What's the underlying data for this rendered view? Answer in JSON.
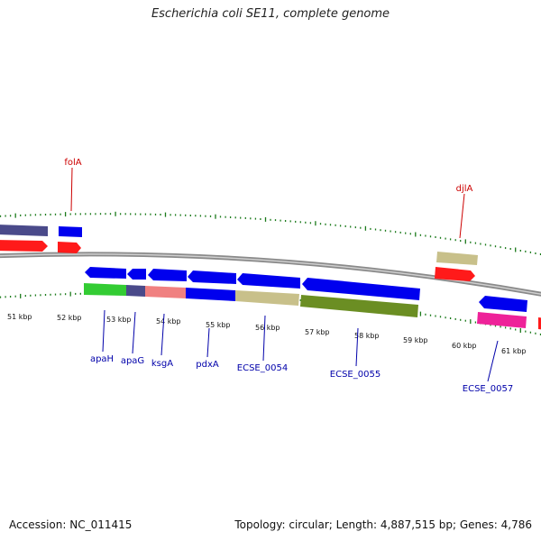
{
  "header": {
    "title": "Escherichia coli SE11, complete genome"
  },
  "footer": {
    "accession": "Accession: NC_011415",
    "summary": "Topology: circular; Length: 4,887,515 bp; Genes: 4,786"
  },
  "colors": {
    "backbone": "#8a8a8a",
    "tick": "#1a7a1a",
    "scale_label": "#111111",
    "label_red": "#cc0000",
    "label_blue": "#0000aa"
  },
  "scale_labels": [
    "51 kbp",
    "52 kbp",
    "53 kbp",
    "54 kbp",
    "55 kbp",
    "56 kbp",
    "57 kbp",
    "58 kbp",
    "59 kbp",
    "60 kbp",
    "61 kbp"
  ],
  "gene_labels": [
    {
      "text": "folA",
      "color": "red"
    },
    {
      "text": "djlA",
      "color": "red"
    },
    {
      "text": "apaH",
      "color": "blue"
    },
    {
      "text": "apaG",
      "color": "blue"
    },
    {
      "text": "ksgA",
      "color": "blue"
    },
    {
      "text": "pdxA",
      "color": "blue"
    },
    {
      "text": "ECSE_0054",
      "color": "blue"
    },
    {
      "text": "ECSE_0055",
      "color": "blue"
    },
    {
      "text": "ECSE_0057",
      "color": "blue"
    }
  ],
  "feature_colors": {
    "cds": "#0000ee",
    "gene": "#ff1a1a",
    "navy": "#4a4a8a",
    "green": "#33cc33",
    "salmon": "#f08080",
    "khaki": "#c8c08a",
    "olive": "#6b8e23",
    "magenta": "#ee2299"
  }
}
